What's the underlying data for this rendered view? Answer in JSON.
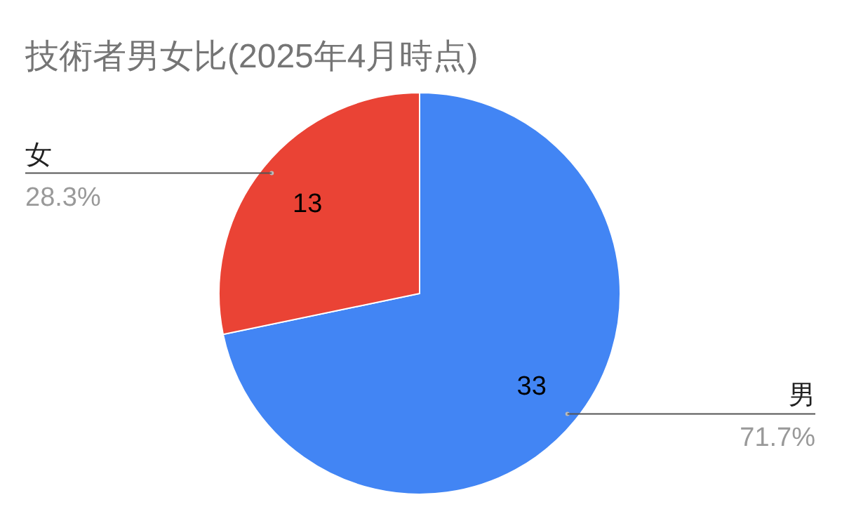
{
  "chart_data": {
    "type": "pie",
    "title": "技術者男女比(2025年4月時点)",
    "categories": [
      "男",
      "女"
    ],
    "values": [
      33,
      13
    ],
    "colors": [
      "#4285f4",
      "#ea4335"
    ],
    "data_labels": true,
    "annotations": [
      "71.7%",
      "28.3%"
    ]
  }
}
